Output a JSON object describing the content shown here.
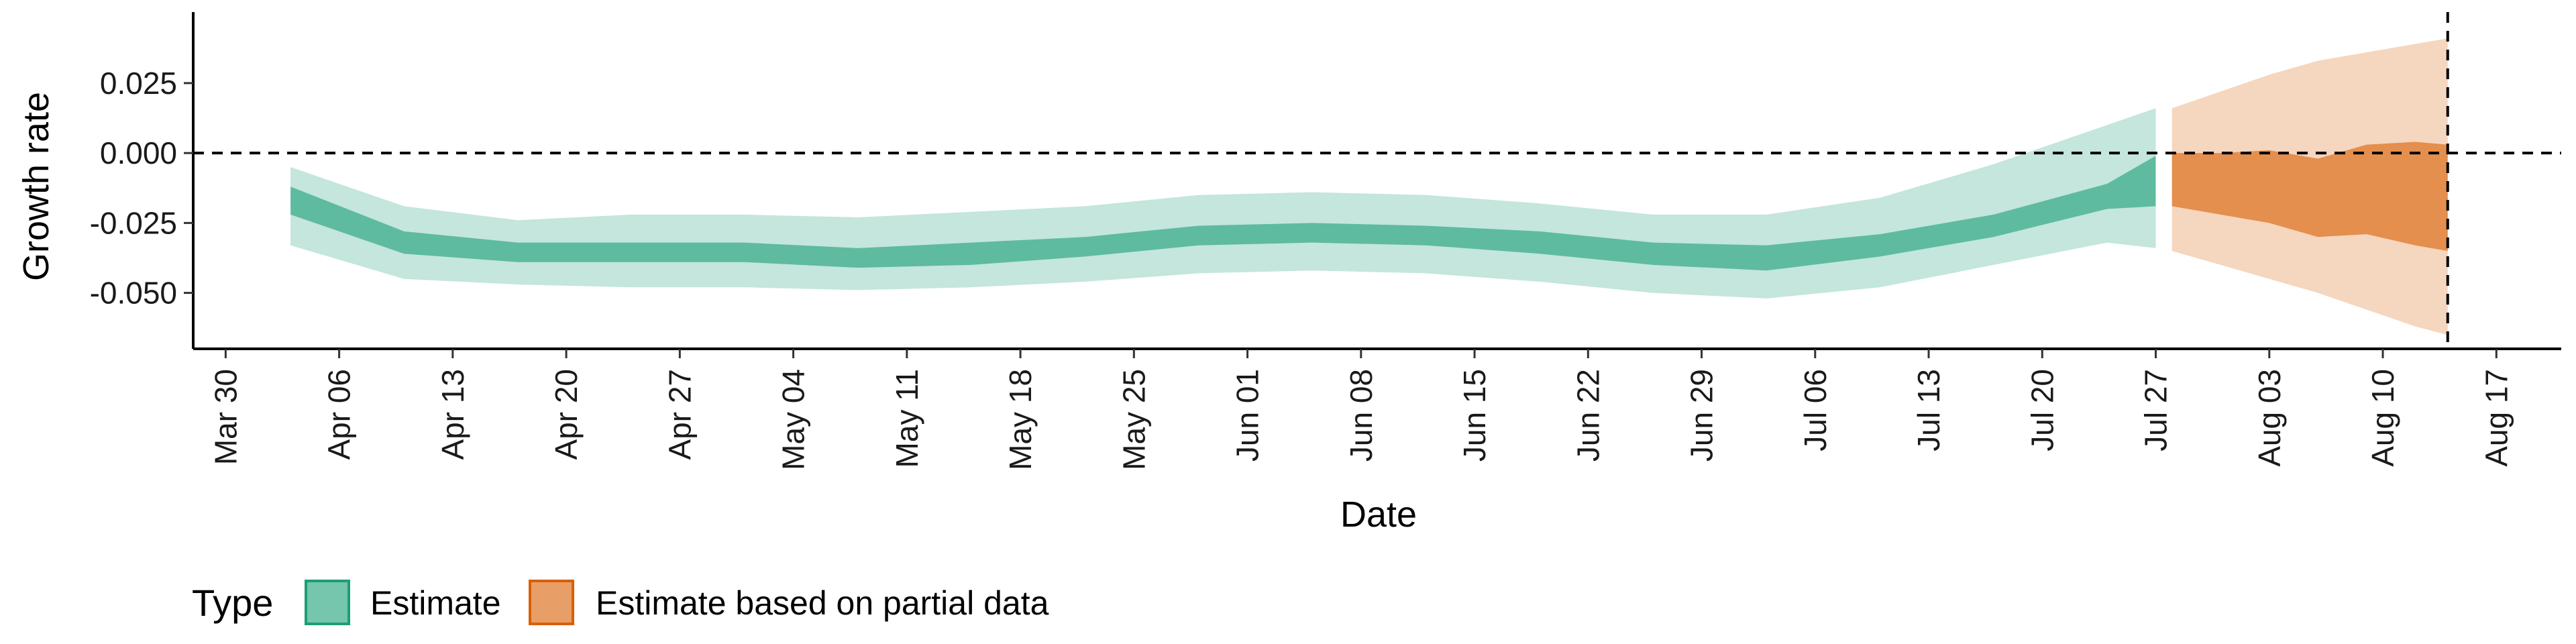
{
  "chart_data": {
    "type": "area",
    "title": "",
    "xlabel": "Date",
    "ylabel": "Growth rate",
    "x_ticks": [
      "Mar 30",
      "Apr 06",
      "Apr 13",
      "Apr 20",
      "Apr 27",
      "May 04",
      "May 11",
      "May 18",
      "May 25",
      "Jun 01",
      "Jun 08",
      "Jun 15",
      "Jun 22",
      "Jun 29",
      "Jul 06",
      "Jul 13",
      "Jul 20",
      "Jul 27",
      "Aug 03",
      "Aug 10",
      "Aug 17"
    ],
    "xlim": [
      "2020-03-28",
      "2020-08-21"
    ],
    "y_ticks": [
      "0.025",
      "0.000",
      "-0.025",
      "-0.050"
    ],
    "y_tick_values": [
      0.025,
      0.0,
      -0.025,
      -0.05
    ],
    "ylim": [
      -0.07,
      0.048
    ],
    "reference_lines": {
      "horizontal": {
        "y": 0.0,
        "style": "dashed"
      },
      "vertical": {
        "x": "2020-08-14",
        "style": "dashed"
      }
    },
    "grid": false,
    "legend": {
      "position": "bottom-left",
      "title": "Type",
      "entries": [
        "Estimate",
        "Estimate based on partial data"
      ]
    },
    "colors": {
      "estimate": "#1b9e77",
      "partial": "#d95f02"
    },
    "series": [
      {
        "name": "Estimate",
        "x": [
          "2020-04-03",
          "2020-04-10",
          "2020-04-17",
          "2020-04-24",
          "2020-05-01",
          "2020-05-08",
          "2020-05-15",
          "2020-05-22",
          "2020-05-29",
          "2020-06-05",
          "2020-06-12",
          "2020-06-19",
          "2020-06-26",
          "2020-07-03",
          "2020-07-10",
          "2020-07-17",
          "2020-07-24",
          "2020-07-27"
        ],
        "inner_upper": [
          -0.012,
          -0.028,
          -0.032,
          -0.032,
          -0.032,
          -0.034,
          -0.032,
          -0.03,
          -0.026,
          -0.025,
          -0.026,
          -0.028,
          -0.032,
          -0.033,
          -0.029,
          -0.022,
          -0.011,
          -0.001
        ],
        "inner_lower": [
          -0.022,
          -0.036,
          -0.039,
          -0.039,
          -0.039,
          -0.041,
          -0.04,
          -0.037,
          -0.033,
          -0.032,
          -0.033,
          -0.036,
          -0.04,
          -0.042,
          -0.037,
          -0.03,
          -0.02,
          -0.019
        ],
        "outer_upper": [
          -0.005,
          -0.019,
          -0.024,
          -0.022,
          -0.022,
          -0.023,
          -0.021,
          -0.019,
          -0.015,
          -0.014,
          -0.015,
          -0.018,
          -0.022,
          -0.022,
          -0.016,
          -0.004,
          0.01,
          0.016
        ],
        "outer_lower": [
          -0.033,
          -0.045,
          -0.047,
          -0.048,
          -0.048,
          -0.049,
          -0.048,
          -0.046,
          -0.043,
          -0.042,
          -0.043,
          -0.046,
          -0.05,
          -0.052,
          -0.048,
          -0.04,
          -0.032,
          -0.034
        ]
      },
      {
        "name": "Estimate based on partial data",
        "x": [
          "2020-07-28",
          "2020-07-31",
          "2020-08-03",
          "2020-08-06",
          "2020-08-09",
          "2020-08-12",
          "2020-08-14"
        ],
        "inner_upper": [
          0.0,
          0.0,
          0.001,
          -0.002,
          0.003,
          0.004,
          0.003
        ],
        "inner_lower": [
          -0.019,
          -0.022,
          -0.025,
          -0.03,
          -0.029,
          -0.033,
          -0.035
        ],
        "outer_upper": [
          0.016,
          0.022,
          0.028,
          0.033,
          0.036,
          0.039,
          0.041
        ],
        "outer_lower": [
          -0.035,
          -0.04,
          -0.045,
          -0.05,
          -0.056,
          -0.062,
          -0.065
        ]
      }
    ]
  }
}
